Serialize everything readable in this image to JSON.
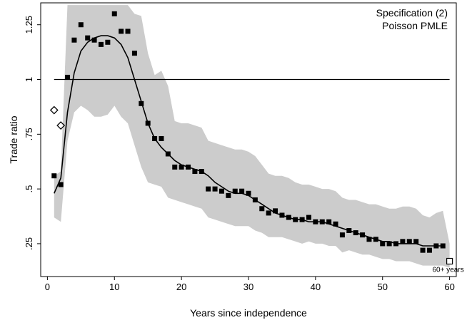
{
  "chart_data": {
    "type": "scatter",
    "xlabel": "Years since independence",
    "ylabel": "Trade ratio",
    "xlim": [
      -1,
      61
    ],
    "ylim": [
      0.1,
      1.35
    ],
    "x_ticks": [
      0,
      10,
      20,
      30,
      40,
      50,
      60
    ],
    "x_tick_labels": [
      "0",
      "10",
      "20",
      "30",
      "40",
      "50",
      "60"
    ],
    "y_ticks": [
      0.25,
      0.5,
      0.75,
      1,
      1.25
    ],
    "y_tick_labels": [
      ".25",
      ".5",
      ".75",
      "1",
      "1.25"
    ],
    "grid": false,
    "annotation_lines": [
      "Specification (2)",
      "Poisson PMLE"
    ],
    "reference_line_y": 1,
    "band_color": "#cccccc",
    "marker_color": "#000000",
    "points": {
      "x": [
        1,
        2,
        3,
        4,
        5,
        6,
        7,
        8,
        9,
        10,
        11,
        12,
        13,
        14,
        15,
        16,
        17,
        18,
        19,
        20,
        21,
        22,
        23,
        24,
        25,
        26,
        27,
        28,
        29,
        30,
        31,
        32,
        33,
        34,
        35,
        36,
        37,
        38,
        39,
        40,
        41,
        42,
        43,
        44,
        45,
        46,
        47,
        48,
        49,
        50,
        51,
        52,
        53,
        54,
        55,
        56,
        57,
        58,
        59
      ],
      "y": [
        0.56,
        0.52,
        1.01,
        1.18,
        1.25,
        1.19,
        1.18,
        1.16,
        1.17,
        1.3,
        1.22,
        1.22,
        1.12,
        0.89,
        0.8,
        0.73,
        0.73,
        0.66,
        0.6,
        0.6,
        0.6,
        0.58,
        0.58,
        0.5,
        0.5,
        0.49,
        0.47,
        0.49,
        0.49,
        0.48,
        0.45,
        0.41,
        0.39,
        0.4,
        0.38,
        0.37,
        0.36,
        0.36,
        0.37,
        0.35,
        0.35,
        0.35,
        0.34,
        0.29,
        0.31,
        0.3,
        0.29,
        0.27,
        0.27,
        0.25,
        0.25,
        0.25,
        0.26,
        0.26,
        0.26,
        0.22,
        0.22,
        0.24,
        0.24
      ]
    },
    "hollow_diamonds": {
      "x": [
        1,
        2
      ],
      "y": [
        0.86,
        0.79
      ]
    },
    "hollow_square": {
      "x": 60,
      "y": 0.17,
      "label": "60+ years"
    },
    "fit_line": {
      "x": [
        1,
        2,
        3,
        4,
        5,
        6,
        7,
        8,
        9,
        10,
        11,
        12,
        13,
        14,
        15,
        16,
        17,
        18,
        19,
        20,
        21,
        22,
        23,
        24,
        25,
        26,
        27,
        28,
        29,
        30,
        31,
        32,
        33,
        34,
        35,
        36,
        37,
        38,
        39,
        40,
        41,
        42,
        43,
        44,
        45,
        46,
        47,
        48,
        49,
        50,
        51,
        52,
        53,
        54,
        55,
        56,
        57,
        58,
        59
      ],
      "y": [
        0.48,
        0.55,
        0.85,
        1.03,
        1.13,
        1.17,
        1.19,
        1.2,
        1.2,
        1.19,
        1.16,
        1.1,
        1.0,
        0.9,
        0.8,
        0.73,
        0.69,
        0.66,
        0.63,
        0.61,
        0.6,
        0.59,
        0.58,
        0.56,
        0.53,
        0.51,
        0.49,
        0.48,
        0.48,
        0.47,
        0.45,
        0.43,
        0.41,
        0.39,
        0.38,
        0.37,
        0.36,
        0.36,
        0.35,
        0.35,
        0.35,
        0.34,
        0.33,
        0.32,
        0.31,
        0.3,
        0.29,
        0.28,
        0.27,
        0.26,
        0.26,
        0.25,
        0.25,
        0.25,
        0.25,
        0.24,
        0.24,
        0.24,
        0.24
      ]
    },
    "confidence_band": {
      "x": [
        1,
        2,
        3,
        4,
        5,
        6,
        7,
        8,
        9,
        10,
        11,
        12,
        13,
        14,
        15,
        16,
        17,
        18,
        19,
        20,
        21,
        22,
        23,
        24,
        25,
        26,
        27,
        28,
        29,
        30,
        31,
        32,
        33,
        34,
        35,
        36,
        37,
        38,
        39,
        40,
        41,
        42,
        43,
        44,
        45,
        46,
        47,
        48,
        49,
        50,
        51,
        52,
        53,
        54,
        55,
        56,
        57,
        58,
        59,
        60
      ],
      "lower": [
        0.37,
        0.35,
        0.72,
        0.85,
        0.88,
        0.86,
        0.83,
        0.83,
        0.84,
        0.88,
        0.83,
        0.8,
        0.7,
        0.6,
        0.53,
        0.52,
        0.51,
        0.46,
        0.45,
        0.44,
        0.43,
        0.42,
        0.41,
        0.37,
        0.36,
        0.35,
        0.34,
        0.33,
        0.33,
        0.33,
        0.31,
        0.3,
        0.28,
        0.28,
        0.28,
        0.27,
        0.26,
        0.25,
        0.26,
        0.25,
        0.25,
        0.24,
        0.24,
        0.21,
        0.22,
        0.21,
        0.2,
        0.2,
        0.19,
        0.18,
        0.18,
        0.17,
        0.17,
        0.17,
        0.16,
        0.15,
        0.15,
        0.15,
        0.15,
        0.14
      ],
      "upper": [
        0.56,
        0.58,
        1.34,
        1.34,
        1.34,
        1.34,
        1.34,
        1.34,
        1.34,
        1.34,
        1.34,
        1.34,
        1.3,
        1.29,
        1.12,
        1.02,
        1.04,
        0.97,
        0.81,
        0.8,
        0.8,
        0.79,
        0.78,
        0.72,
        0.71,
        0.7,
        0.69,
        0.68,
        0.68,
        0.67,
        0.65,
        0.61,
        0.57,
        0.56,
        0.56,
        0.55,
        0.53,
        0.52,
        0.52,
        0.51,
        0.5,
        0.5,
        0.49,
        0.46,
        0.45,
        0.45,
        0.44,
        0.43,
        0.43,
        0.42,
        0.41,
        0.41,
        0.42,
        0.42,
        0.41,
        0.38,
        0.37,
        0.39,
        0.4,
        0.25
      ]
    }
  }
}
